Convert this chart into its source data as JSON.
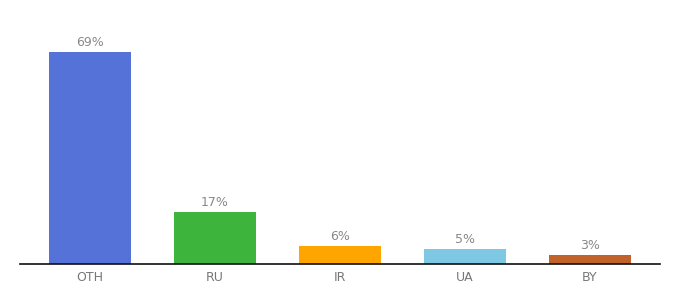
{
  "categories": [
    "OTH",
    "RU",
    "IR",
    "UA",
    "BY"
  ],
  "values": [
    69,
    17,
    6,
    5,
    3
  ],
  "labels": [
    "69%",
    "17%",
    "6%",
    "5%",
    "3%"
  ],
  "bar_colors": [
    "#5572D8",
    "#3DB53D",
    "#FFA500",
    "#7EC8E3",
    "#C0622A"
  ],
  "ylim": [
    0,
    78
  ],
  "background_color": "#ffffff",
  "label_fontsize": 9,
  "tick_fontsize": 9,
  "label_color": "#888888",
  "tick_color": "#777777",
  "bar_width": 0.65,
  "spine_color": "#111111"
}
